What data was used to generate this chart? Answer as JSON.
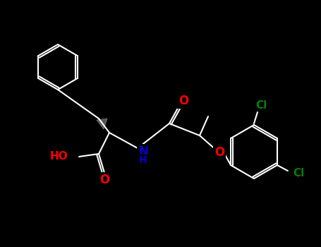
{
  "background_color": "#000000",
  "bond_color": "#FFFFFF",
  "bond_width": 1.5,
  "atom_colors": {
    "O": "#FF0000",
    "N": "#0000CD",
    "Cl": "#008000",
    "C": "#FFFFFF"
  },
  "font_size": 11,
  "bold_font_size": 12
}
